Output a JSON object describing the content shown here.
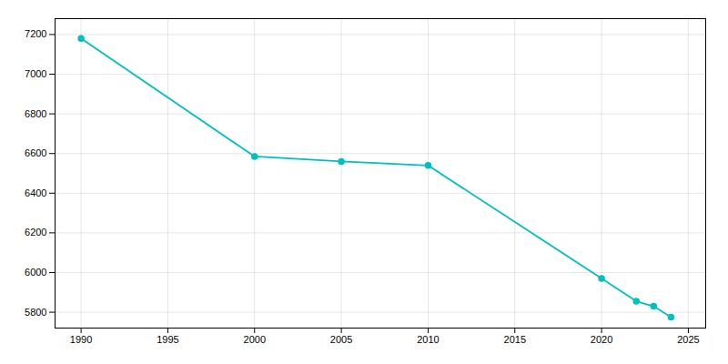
{
  "chart_data": {
    "type": "line",
    "x": [
      1990,
      2000,
      2005,
      2010,
      2020,
      2022,
      2023,
      2024
    ],
    "values": [
      7180,
      6585,
      6560,
      6540,
      5970,
      5855,
      5830,
      5775
    ],
    "color": "#00BFBF",
    "marker": "circle",
    "xlim": [
      1988.5,
      2026
    ],
    "xticks": [
      1990,
      1995,
      2000,
      2005,
      2010,
      2015,
      2020,
      2025
    ],
    "ylim": [
      5720,
      7280
    ],
    "yticks": [
      5800,
      6000,
      6200,
      6400,
      6600,
      6800,
      7000,
      7200
    ],
    "grid": true
  }
}
